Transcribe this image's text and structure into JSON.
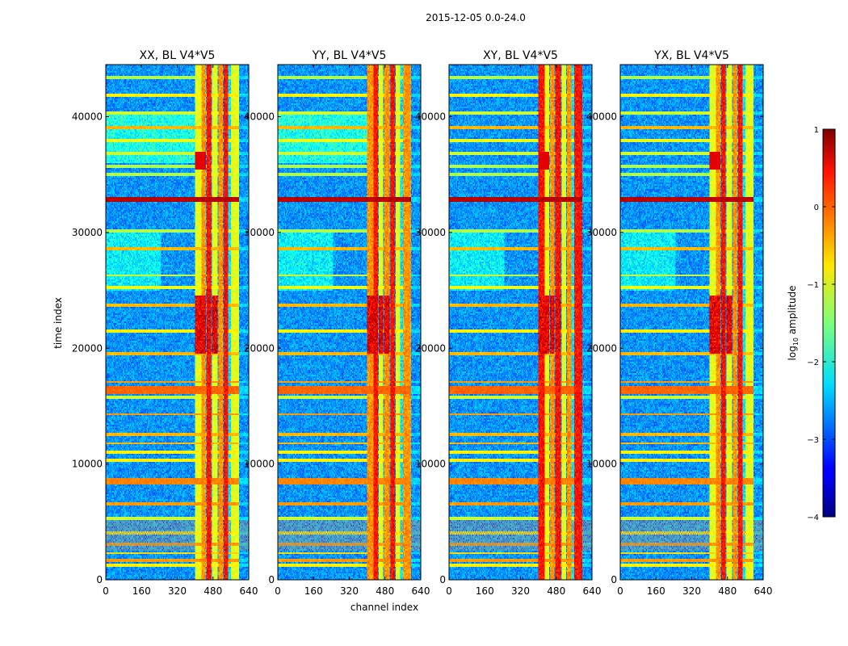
{
  "figure": {
    "suptitle": "2015-12-05 0.0-24.0",
    "ylabel": "time index",
    "xlabel": "channel index"
  },
  "colors": {
    "frame": "#000000",
    "background": "#ffffff"
  },
  "chart_data": {
    "type": "heatmap",
    "colormap": "jet",
    "panels": [
      {
        "title": "XX, BL V4*V5",
        "pol": "XX"
      },
      {
        "title": "YY, BL V4*V5",
        "pol": "YY"
      },
      {
        "title": "XY, BL V4*V5",
        "pol": "XY"
      },
      {
        "title": "YX, BL V4*V5",
        "pol": "YX"
      }
    ],
    "x_range": [
      0,
      640
    ],
    "y_range": [
      0,
      44500
    ],
    "x_ticks": [
      0,
      160,
      320,
      480,
      640
    ],
    "x_tick_labels": [
      "0",
      "160",
      "320",
      "480",
      "640"
    ],
    "y_ticks": [
      0,
      10000,
      20000,
      30000,
      40000
    ],
    "y_tick_labels": [
      "0",
      "10000",
      "20000",
      "30000",
      "40000"
    ],
    "colorbar": {
      "label": "log10 amplitude",
      "label_main": "log",
      "label_sub": "10",
      "label_rest": " amplitude",
      "range": [
        -4,
        1
      ],
      "ticks": [
        1,
        0,
        -1,
        -2,
        -3,
        -4
      ],
      "tick_labels": [
        "1",
        "0",
        "−1",
        "−2",
        "−3",
        "−4"
      ]
    },
    "rfi_channel_bands": [
      [
        402,
        428
      ],
      [
        430,
        447
      ],
      [
        452,
        470
      ],
      [
        478,
        498
      ],
      [
        505,
        525
      ],
      [
        528,
        548
      ],
      [
        560,
        595
      ]
    ],
    "rfi_time_rows": [
      1200,
      1700,
      2300,
      3100,
      4000,
      5300,
      6600,
      8500,
      10300,
      11000,
      11800,
      12500,
      14300,
      15800,
      16400,
      17100,
      19500,
      21500,
      23700,
      25300,
      26300,
      28600,
      30100,
      32800,
      35000,
      35700,
      36800,
      37900,
      39100,
      40300,
      41800,
      43400
    ]
  }
}
